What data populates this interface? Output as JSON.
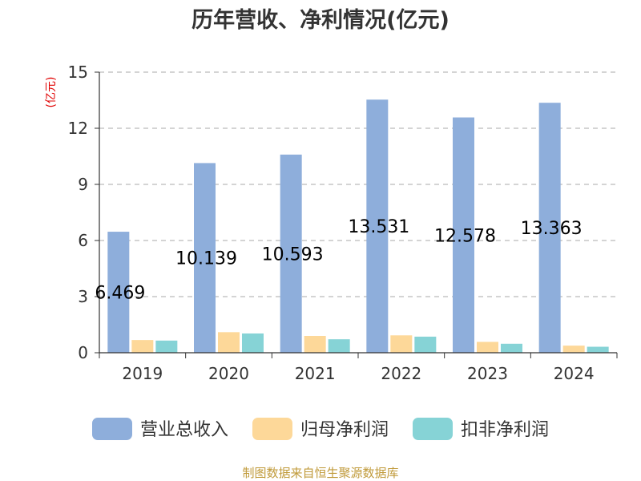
{
  "chart_data": {
    "type": "bar",
    "title": "历年营收、净利情况(亿元)",
    "unit_label": "(亿元)",
    "categories": [
      "2019",
      "2020",
      "2021",
      "2022",
      "2023",
      "2024"
    ],
    "series": [
      {
        "name": "营业总收入",
        "color": "#8eaedb",
        "values": [
          6.469,
          10.139,
          10.593,
          13.531,
          12.578,
          13.363
        ],
        "labels": [
          "6.469",
          "10.139",
          "10.593",
          "13.531",
          "12.578",
          "13.363"
        ]
      },
      {
        "name": "归母净利润",
        "color": "#fdd899",
        "values": [
          0.68,
          1.1,
          0.9,
          0.93,
          0.58,
          0.38
        ]
      },
      {
        "name": "扣非净利润",
        "color": "#86d3d6",
        "values": [
          0.65,
          1.03,
          0.72,
          0.86,
          0.48,
          0.32
        ]
      }
    ],
    "y_ticks": [
      "0",
      "3",
      "6",
      "9",
      "12",
      "15"
    ],
    "ylim": [
      0,
      15
    ],
    "grid": true,
    "legend_position": "bottom"
  },
  "source": "制图数据来自恒生聚源数据库"
}
